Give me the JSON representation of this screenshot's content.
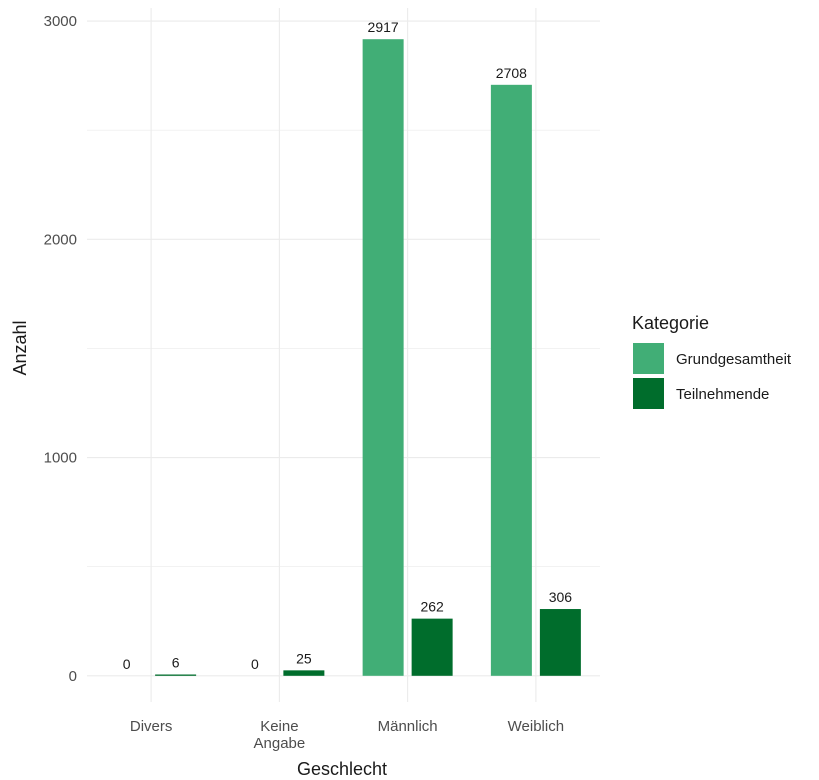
{
  "chart_data": {
    "type": "bar",
    "xlabel": "Geschlecht",
    "ylabel": "Anzahl",
    "categories": [
      [
        "Divers"
      ],
      [
        "Keine",
        "Angabe"
      ],
      [
        "Männlich"
      ],
      [
        "Weiblich"
      ]
    ],
    "series": [
      {
        "name": "Grundgesamtheit",
        "color": "#41AE76",
        "values": [
          0,
          0,
          2917,
          2708
        ],
        "labels": [
          "0",
          "0",
          "2917",
          "2708"
        ]
      },
      {
        "name": "Teilnehmende",
        "color": "#006D2C",
        "values": [
          6,
          25,
          262,
          306
        ],
        "labels": [
          "6",
          "25",
          "262",
          "306"
        ]
      }
    ],
    "yticks": [
      0,
      1000,
      2000,
      3000
    ],
    "ytick_labels": [
      "0",
      "1000",
      "2000",
      "3000"
    ],
    "ylim": [
      -120,
      3060
    ],
    "grid": true,
    "legend": {
      "title": "Kategorie",
      "position": "right"
    }
  }
}
